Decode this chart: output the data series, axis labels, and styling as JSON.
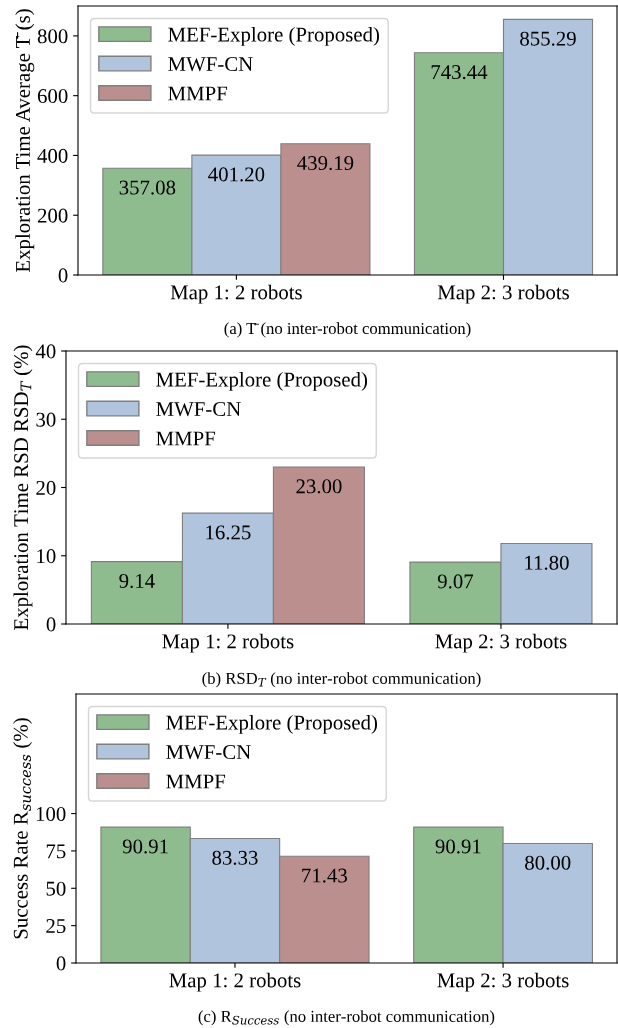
{
  "chart_data": [
    {
      "type": "bar",
      "title": "(a) T̄ (no inter-robot communication)",
      "ylabel": "Exploration Time Average T̄ (s)",
      "categories": [
        "Map 1: 2 robots",
        "Map 2: 3 robots"
      ],
      "ylim": [
        0,
        900
      ],
      "yticks": [
        0,
        200,
        400,
        600,
        800
      ],
      "grid": false,
      "legend": "top left",
      "series": [
        {
          "name": "MEF-Explore (Proposed)",
          "color": "#8fbc8f",
          "values": [
            357.08,
            743.44
          ],
          "value_labels": [
            "357.08",
            "743.44"
          ]
        },
        {
          "name": "MWF-CN",
          "color": "#b0c4de",
          "values": [
            401.2,
            855.29
          ],
          "value_labels": [
            "401.20",
            "855.29"
          ]
        },
        {
          "name": "MMPF",
          "color": "#bc8f8f",
          "values": [
            439.19,
            null
          ],
          "value_labels": [
            "439.19",
            null
          ]
        }
      ]
    },
    {
      "type": "bar",
      "title": "(b) RSD$_{T}$ (no inter-robot communication)",
      "ylabel": "Exploration Time RSD RSD$_{T}$ (%)",
      "categories": [
        "Map 1: 2 robots",
        "Map 2: 3 robots"
      ],
      "ylim": [
        0,
        40
      ],
      "yticks": [
        0,
        10,
        20,
        30,
        40
      ],
      "grid": false,
      "legend": "top left",
      "series": [
        {
          "name": "MEF-Explore (Proposed)",
          "color": "#8fbc8f",
          "values": [
            9.14,
            9.07
          ],
          "value_labels": [
            "9.14",
            "9.07"
          ]
        },
        {
          "name": "MWF-CN",
          "color": "#b0c4de",
          "values": [
            16.25,
            11.8
          ],
          "value_labels": [
            "16.25",
            "11.80"
          ]
        },
        {
          "name": "MMPF",
          "color": "#bc8f8f",
          "values": [
            23.0,
            null
          ],
          "value_labels": [
            "23.00",
            null
          ]
        }
      ]
    },
    {
      "type": "bar",
      "title": "(c) R$_{Success}$ (no inter-robot communication)",
      "ylabel": "Success Rate R$_{success}$ (%)",
      "categories": [
        "Map 1: 2 robots",
        "Map 2: 3 robots"
      ],
      "ylim": [
        0,
        180
      ],
      "yticks": [
        0,
        25,
        50,
        75,
        100
      ],
      "grid": false,
      "legend": "top left",
      "series": [
        {
          "name": "MEF-Explore (Proposed)",
          "color": "#8fbc8f",
          "values": [
            90.91,
            90.91
          ],
          "value_labels": [
            "90.91",
            "90.91"
          ]
        },
        {
          "name": "MWF-CN",
          "color": "#b0c4de",
          "values": [
            83.33,
            80.0
          ],
          "value_labels": [
            "83.33",
            "80.00"
          ]
        },
        {
          "name": "MMPF",
          "color": "#bc8f8f",
          "values": [
            71.43,
            null
          ],
          "value_labels": [
            "71.43",
            null
          ]
        }
      ]
    }
  ]
}
